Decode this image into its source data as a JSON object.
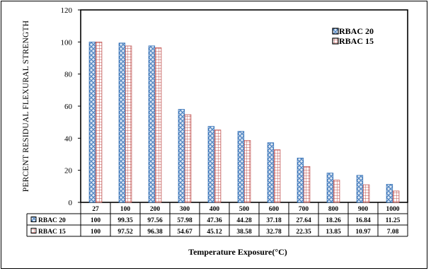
{
  "chart_data": {
    "type": "bar",
    "categories": [
      "27",
      "100",
      "200",
      "300",
      "400",
      "500",
      "600",
      "700",
      "800",
      "900",
      "1000"
    ],
    "series": [
      {
        "name": "RBAC 20",
        "values": [
          100,
          99.35,
          97.56,
          57.98,
          47.36,
          44.28,
          37.18,
          27.64,
          18.26,
          16.84,
          11.25
        ],
        "color": "#2e6db5",
        "pattern": "blue-circles"
      },
      {
        "name": "RBAC 15",
        "values": [
          100,
          97.52,
          96.38,
          54.67,
          45.12,
          38.58,
          32.78,
          22.35,
          13.85,
          10.97,
          7.08
        ],
        "color": "#c0504d",
        "pattern": "red-grid"
      }
    ],
    "ylabel": "PERCENT RESIDUAL FLEXURAL STRENGTH",
    "xlabel": "Temperature Exposure(°C)",
    "ylim": [
      0,
      120
    ],
    "yticks": [
      "0",
      "20",
      "40",
      "60",
      "80",
      "100",
      "120"
    ],
    "legend_position": "top-right",
    "data_table": true,
    "table_rows": [
      {
        "label": "RBAC 20",
        "cells": [
          "100",
          "99.35",
          "97.56",
          "57.98",
          "47.36",
          "44.28",
          "37.18",
          "27.64",
          "18.26",
          "16.84",
          "11.25"
        ]
      },
      {
        "label": "RBAC 15",
        "cells": [
          "100",
          "97.52",
          "96.38",
          "54.67",
          "45.12",
          "38.58",
          "32.78",
          "22.35",
          "13.85",
          "10.97",
          "7.08"
        ]
      }
    ]
  }
}
